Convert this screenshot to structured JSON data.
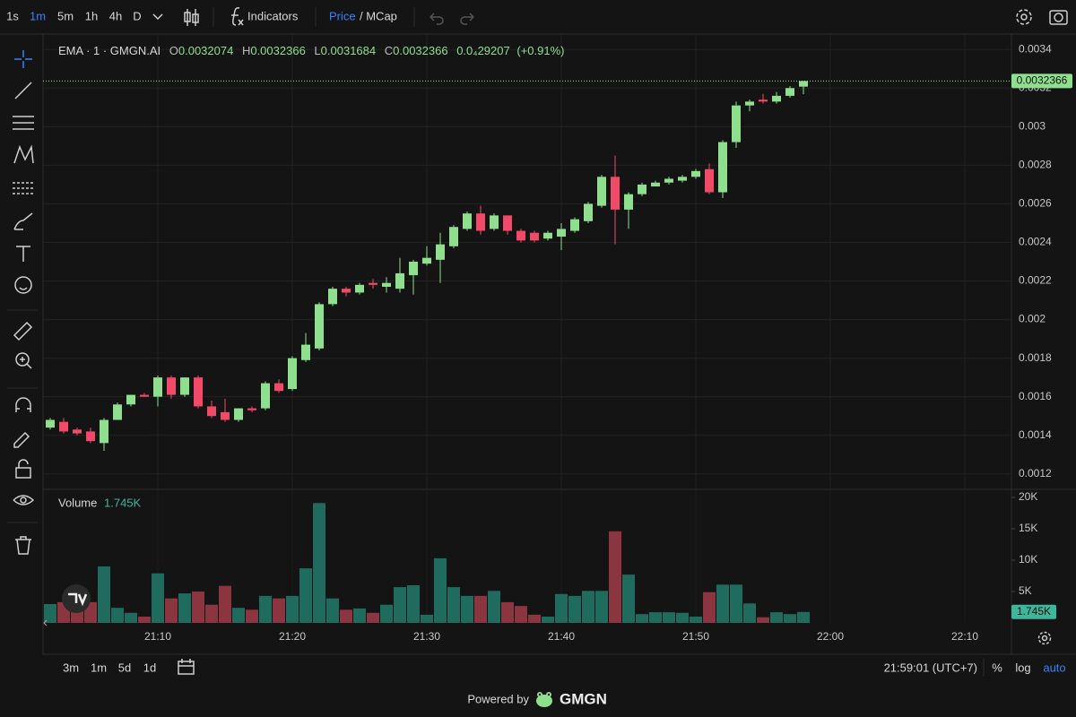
{
  "ui": {
    "toolbar": {
      "intervals": [
        "1s",
        "1m",
        "5m",
        "1h",
        "4h",
        "D"
      ],
      "indicators": "Indicators",
      "price": "Price",
      "mcap": "/ MCap"
    },
    "legend": {
      "o": "O",
      "h": "H",
      "l": "L",
      "c": "C",
      "change": "0.0₄29207",
      "change_pct": "(+0.91%)"
    },
    "bottom": {
      "ranges": [
        "3m",
        "1m",
        "5d",
        "1d"
      ],
      "clock": "21:59:01 (UTC+7)",
      "percent": "%",
      "log": "log",
      "auto": "auto"
    },
    "footer": {
      "powered": "Powered by",
      "brand": "GMGN"
    }
  },
  "chart_data": [
    {
      "type": "candlestick",
      "title": "EMA · 1 · GMGN.AI",
      "x": [
        "21:02",
        "21:03",
        "21:04",
        "21:05",
        "21:06",
        "21:07",
        "21:08",
        "21:09",
        "21:10",
        "21:11",
        "21:12",
        "21:13",
        "21:14",
        "21:15",
        "21:16",
        "21:17",
        "21:18",
        "21:19",
        "21:20",
        "21:21",
        "21:22",
        "21:23",
        "21:24",
        "21:25",
        "21:26",
        "21:27",
        "21:28",
        "21:29",
        "21:30",
        "21:31",
        "21:32",
        "21:33",
        "21:34",
        "21:35",
        "21:36",
        "21:37",
        "21:38",
        "21:39",
        "21:40",
        "21:41",
        "21:42",
        "21:43",
        "21:44",
        "21:45",
        "21:46",
        "21:47",
        "21:48",
        "21:49",
        "21:50",
        "21:51",
        "21:52",
        "21:53",
        "21:54",
        "21:55",
        "21:56",
        "21:57",
        "21:58"
      ],
      "open": [
        0.00144,
        0.00147,
        0.00143,
        0.00142,
        0.00136,
        0.00148,
        0.00156,
        0.00161,
        0.0016,
        0.0017,
        0.00161,
        0.0017,
        0.00155,
        0.00152,
        0.00148,
        0.00154,
        0.00154,
        0.00167,
        0.00164,
        0.00179,
        0.00185,
        0.00208,
        0.00216,
        0.00214,
        0.00219,
        0.00217,
        0.00216,
        0.00223,
        0.00229,
        0.00231,
        0.00238,
        0.00247,
        0.00255,
        0.00247,
        0.00254,
        0.00246,
        0.00245,
        0.00242,
        0.00243,
        0.00246,
        0.00251,
        0.00259,
        0.00274,
        0.00257,
        0.00265,
        0.00269,
        0.00271,
        0.00272,
        0.00274,
        0.00278,
        0.00266,
        0.00292,
        0.00311,
        0.00314,
        0.00313,
        0.00316,
        0.0032074
      ],
      "high": [
        0.00149,
        0.00149,
        0.00144,
        0.00144,
        0.00149,
        0.00157,
        0.00161,
        0.00162,
        0.00171,
        0.00171,
        0.0017,
        0.00171,
        0.00158,
        0.00159,
        0.00154,
        0.00155,
        0.00168,
        0.00169,
        0.00181,
        0.00193,
        0.00209,
        0.00217,
        0.00217,
        0.00219,
        0.00221,
        0.00222,
        0.00232,
        0.00231,
        0.00238,
        0.00245,
        0.00249,
        0.00256,
        0.00259,
        0.00255,
        0.00254,
        0.00247,
        0.00246,
        0.00246,
        0.0025,
        0.00253,
        0.00261,
        0.00275,
        0.00285,
        0.00266,
        0.00271,
        0.00272,
        0.00274,
        0.00275,
        0.00278,
        0.00281,
        0.00293,
        0.00313,
        0.00314,
        0.00317,
        0.00318,
        0.00321,
        0.0032366
      ],
      "low": [
        0.00143,
        0.00141,
        0.0014,
        0.00136,
        0.00132,
        0.00148,
        0.00155,
        0.0016,
        0.00155,
        0.00159,
        0.0016,
        0.00154,
        0.00149,
        0.00147,
        0.00147,
        0.00152,
        0.00153,
        0.00162,
        0.00163,
        0.00178,
        0.00184,
        0.00207,
        0.00212,
        0.00213,
        0.00216,
        0.00214,
        0.00214,
        0.00213,
        0.00228,
        0.00219,
        0.00237,
        0.00246,
        0.00244,
        0.00246,
        0.00244,
        0.0024,
        0.0024,
        0.00241,
        0.00236,
        0.00245,
        0.0025,
        0.00258,
        0.00239,
        0.00247,
        0.00264,
        0.00269,
        0.0027,
        0.00271,
        0.00273,
        0.00265,
        0.00263,
        0.00289,
        0.00308,
        0.00312,
        0.00312,
        0.00315,
        0.0031684
      ],
      "close": [
        0.00148,
        0.00142,
        0.00141,
        0.00137,
        0.00148,
        0.00156,
        0.00161,
        0.0016,
        0.0017,
        0.00161,
        0.0017,
        0.00155,
        0.0015,
        0.00148,
        0.00154,
        0.00153,
        0.00167,
        0.00163,
        0.0018,
        0.00187,
        0.00208,
        0.00216,
        0.00214,
        0.00218,
        0.00218,
        0.00219,
        0.00224,
        0.0023,
        0.00232,
        0.00239,
        0.00248,
        0.00255,
        0.00246,
        0.00254,
        0.00246,
        0.00241,
        0.00241,
        0.00245,
        0.00247,
        0.00252,
        0.0026,
        0.00274,
        0.00257,
        0.00265,
        0.0027,
        0.00271,
        0.00273,
        0.00274,
        0.00277,
        0.00266,
        0.00292,
        0.00311,
        0.00313,
        0.00313,
        0.00316,
        0.0032,
        0.0032366
      ],
      "up_color": "#8ee08f",
      "down_color": "#f04a68",
      "ylim": [
        0.00112,
        0.00348
      ],
      "yticks": [
        0.0012,
        0.0014,
        0.0016,
        0.0018,
        0.002,
        0.0022,
        0.0024,
        0.0026,
        0.0028,
        0.003,
        0.0032,
        0.0034
      ],
      "xticks": [
        "21:10",
        "21:20",
        "21:30",
        "21:40",
        "21:50",
        "22:00",
        "22:10"
      ],
      "grid": true
    },
    {
      "type": "bar",
      "title": "Volume",
      "values": [
        3000,
        3300,
        2100,
        3300,
        9000,
        2400,
        1600,
        1000,
        7900,
        3900,
        4700,
        5000,
        2900,
        5900,
        2400,
        2100,
        4300,
        3900,
        4300,
        8700,
        19100,
        3900,
        2100,
        2300,
        1600,
        2900,
        5700,
        6000,
        1300,
        10300,
        5700,
        4300,
        4300,
        5100,
        3300,
        2700,
        1300,
        1000,
        4600,
        4300,
        5100,
        5100,
        14600,
        7700,
        1400,
        1700,
        1700,
        1600,
        1000,
        4900,
        6100,
        6100,
        3100,
        900,
        1700,
        1400,
        1745
      ],
      "value_labels": [
        null,
        null,
        null,
        null,
        null,
        null,
        null,
        null,
        null,
        null,
        null,
        null,
        null,
        null,
        null,
        null,
        null,
        null,
        null,
        null,
        null,
        null,
        null,
        null,
        null,
        null,
        null,
        null,
        null,
        null,
        null,
        null,
        null,
        null,
        null,
        null,
        null,
        null,
        null,
        null,
        null,
        null,
        null,
        null,
        null,
        null,
        null,
        null,
        null,
        null,
        null,
        null,
        null,
        null,
        null,
        null,
        "1.745K"
      ],
      "up_color": "#1f6b5d",
      "down_color": "#8a3540",
      "ylim": [
        0,
        21000
      ],
      "yticks": [
        {
          "value": 5000,
          "label": "5K"
        },
        {
          "value": 10000,
          "label": "10K"
        },
        {
          "value": 15000,
          "label": "15K"
        },
        {
          "value": 20000,
          "label": "20K"
        }
      ]
    }
  ]
}
